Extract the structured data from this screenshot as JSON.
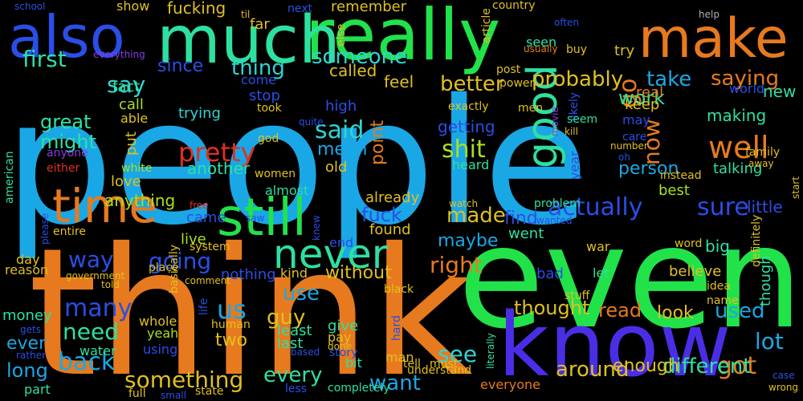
{
  "colors": {
    "background": "#000000",
    "sky": "#1aa7e6",
    "green": "#22e24a",
    "orange": "#e77a1e",
    "violet": "#4a2ee6",
    "mint": "#2ee0a0",
    "cyan": "#2fd4d4",
    "blue": "#2a4ee6",
    "lime": "#a8e020",
    "red": "#e03020",
    "gold": "#e0c020",
    "purple": "#8a3ae6",
    "gray": "#b0b0b0"
  },
  "words": [
    {
      "text": "people",
      "color": "sky"
    },
    {
      "text": "think",
      "color": "orange"
    },
    {
      "text": "even",
      "color": "green"
    },
    {
      "text": "know",
      "color": "violet"
    },
    {
      "text": "really",
      "color": "green"
    },
    {
      "text": "much",
      "color": "mint"
    },
    {
      "text": "also",
      "color": "blue"
    },
    {
      "text": "make",
      "color": "orange"
    },
    {
      "text": "time",
      "color": "orange"
    },
    {
      "text": "still",
      "color": "green"
    },
    {
      "text": "never",
      "color": "mint"
    },
    {
      "text": "good",
      "color": "mint"
    },
    {
      "text": "go",
      "color": "orange"
    },
    {
      "text": "now",
      "color": "orange"
    },
    {
      "text": "pretty",
      "color": "red"
    },
    {
      "text": "well",
      "color": "orange"
    },
    {
      "text": "actually",
      "color": "blue"
    },
    {
      "text": "sure",
      "color": "blue"
    },
    {
      "text": "shit",
      "color": "lime"
    },
    {
      "text": "made",
      "color": "gold"
    },
    {
      "text": "said",
      "color": "cyan"
    },
    {
      "text": "first",
      "color": "mint"
    },
    {
      "text": "say",
      "color": "cyan"
    },
    {
      "text": "thing",
      "color": "cyan"
    },
    {
      "text": "someone",
      "color": "cyan"
    },
    {
      "text": "better",
      "color": "gold"
    },
    {
      "text": "probably",
      "color": "gold"
    },
    {
      "text": "take",
      "color": "sky"
    },
    {
      "text": "saying",
      "color": "orange"
    },
    {
      "text": "fucking",
      "color": "gold"
    },
    {
      "text": "going",
      "color": "blue"
    },
    {
      "text": "many",
      "color": "blue"
    },
    {
      "text": "way",
      "color": "blue"
    },
    {
      "text": "need",
      "color": "mint"
    },
    {
      "text": "back",
      "color": "sky"
    },
    {
      "text": "something",
      "color": "gold"
    },
    {
      "text": "every",
      "color": "mint"
    },
    {
      "text": "see",
      "color": "cyan"
    },
    {
      "text": "want",
      "color": "sky"
    },
    {
      "text": "got",
      "color": "orange"
    },
    {
      "text": "lot",
      "color": "sky"
    },
    {
      "text": "read",
      "color": "orange"
    },
    {
      "text": "used",
      "color": "sky"
    },
    {
      "text": "thought",
      "color": "gold"
    },
    {
      "text": "around",
      "color": "gold"
    },
    {
      "text": "different",
      "color": "mint"
    },
    {
      "text": "right",
      "color": "orange"
    },
    {
      "text": "fuck",
      "color": "blue"
    },
    {
      "text": "us",
      "color": "sky"
    },
    {
      "text": "use",
      "color": "sky"
    },
    {
      "text": "guy",
      "color": "gold"
    },
    {
      "text": "great",
      "color": "mint"
    },
    {
      "text": "might",
      "color": "mint"
    },
    {
      "text": "mean",
      "color": "sky"
    },
    {
      "text": "work",
      "color": "mint"
    },
    {
      "text": "person",
      "color": "sky"
    },
    {
      "text": "maybe",
      "color": "sky"
    },
    {
      "text": "find",
      "color": "blue"
    },
    {
      "text": "point",
      "color": "orange"
    },
    {
      "text": "since",
      "color": "blue"
    },
    {
      "text": "another",
      "color": "mint"
    },
    {
      "text": "look",
      "color": "gold"
    },
    {
      "text": "ever",
      "color": "sky"
    },
    {
      "text": "long",
      "color": "sky"
    },
    {
      "text": "two",
      "color": "gold"
    },
    {
      "text": "without",
      "color": "gold"
    },
    {
      "text": "enough",
      "color": "gold"
    },
    {
      "text": "little",
      "color": "blue"
    },
    {
      "text": "new",
      "color": "mint"
    },
    {
      "text": "real",
      "color": "orange"
    },
    {
      "text": "keep",
      "color": "gold"
    },
    {
      "text": "making",
      "color": "mint"
    },
    {
      "text": "talking",
      "color": "mint"
    },
    {
      "text": "best",
      "color": "lime"
    },
    {
      "text": "big",
      "color": "mint"
    },
    {
      "text": "believe",
      "color": "gold"
    },
    {
      "text": "anything",
      "color": "lime"
    },
    {
      "text": "love",
      "color": "gold"
    },
    {
      "text": "live",
      "color": "lime"
    },
    {
      "text": "came",
      "color": "blue"
    },
    {
      "text": "feel",
      "color": "gold"
    },
    {
      "text": "called",
      "color": "gold"
    },
    {
      "text": "getting",
      "color": "blue"
    },
    {
      "text": "old",
      "color": "gold"
    },
    {
      "text": "trying",
      "color": "cyan"
    },
    {
      "text": "stop",
      "color": "blue"
    },
    {
      "text": "come",
      "color": "blue"
    },
    {
      "text": "high",
      "color": "blue"
    },
    {
      "text": "fact",
      "color": "mint"
    },
    {
      "text": "call",
      "color": "lime"
    },
    {
      "text": "able",
      "color": "gold"
    },
    {
      "text": "put",
      "color": "gold"
    },
    {
      "text": "nothing",
      "color": "blue"
    },
    {
      "text": "kind",
      "color": "gold"
    },
    {
      "text": "least",
      "color": "mint"
    },
    {
      "text": "last",
      "color": "mint"
    },
    {
      "text": "give",
      "color": "mint"
    },
    {
      "text": "pay",
      "color": "gold"
    },
    {
      "text": "bit",
      "color": "mint"
    },
    {
      "text": "bad",
      "color": "blue"
    },
    {
      "text": "let",
      "color": "mint"
    },
    {
      "text": "end",
      "color": "blue"
    },
    {
      "text": "found",
      "color": "gold"
    },
    {
      "text": "already",
      "color": "gold"
    },
    {
      "text": "war",
      "color": "gold"
    },
    {
      "text": "went",
      "color": "mint"
    },
    {
      "text": "may",
      "color": "blue"
    },
    {
      "text": "year",
      "color": "blue"
    },
    {
      "text": "world",
      "color": "blue"
    },
    {
      "text": "try",
      "color": "gold"
    },
    {
      "text": "remember",
      "color": "gold"
    },
    {
      "text": "far",
      "color": "gold"
    },
    {
      "text": "show",
      "color": "gold"
    },
    {
      "text": "next",
      "color": "blue"
    },
    {
      "text": "til",
      "color": "gold"
    },
    {
      "text": "seen",
      "color": "mint"
    },
    {
      "text": "post",
      "color": "gold"
    },
    {
      "text": "power",
      "color": "gold"
    },
    {
      "text": "likely",
      "color": "blue"
    },
    {
      "text": "buy",
      "color": "gold"
    },
    {
      "text": "help",
      "color": "gray"
    },
    {
      "text": "country",
      "color": "gold"
    },
    {
      "text": "often",
      "color": "blue"
    },
    {
      "text": "article",
      "color": "gold"
    },
    {
      "text": "usually",
      "color": "orange"
    },
    {
      "text": "else",
      "color": "gold"
    },
    {
      "text": "school",
      "color": "blue"
    },
    {
      "text": "everything",
      "color": "purple"
    },
    {
      "text": "took",
      "color": "gold"
    },
    {
      "text": "exactly",
      "color": "gold"
    },
    {
      "text": "men",
      "color": "gold"
    },
    {
      "text": "movie",
      "color": "purple"
    },
    {
      "text": "seem",
      "color": "mint"
    },
    {
      "text": "kill",
      "color": "gold"
    },
    {
      "text": "care",
      "color": "blue"
    },
    {
      "text": "number",
      "color": "gold"
    },
    {
      "text": "oh",
      "color": "blue"
    },
    {
      "text": "instead",
      "color": "gold"
    },
    {
      "text": "family",
      "color": "gold"
    },
    {
      "text": "away",
      "color": "gold"
    },
    {
      "text": "start",
      "color": "gold"
    },
    {
      "text": "god",
      "color": "gold"
    },
    {
      "text": "quite",
      "color": "blue"
    },
    {
      "text": "heard",
      "color": "mint"
    },
    {
      "text": "women",
      "color": "gold"
    },
    {
      "text": "anyone",
      "color": "purple"
    },
    {
      "text": "white",
      "color": "lime"
    },
    {
      "text": "either",
      "color": "red"
    },
    {
      "text": "american",
      "color": "mint"
    },
    {
      "text": "almost",
      "color": "mint"
    },
    {
      "text": "saw",
      "color": "blue"
    },
    {
      "text": "knew",
      "color": "blue"
    },
    {
      "text": "free",
      "color": "red"
    },
    {
      "text": "system",
      "color": "gold"
    },
    {
      "text": "basically",
      "color": "gold"
    },
    {
      "text": "place",
      "color": "gold"
    },
    {
      "text": "wanted",
      "color": "blue"
    },
    {
      "text": "watch",
      "color": "gold"
    },
    {
      "text": "problem",
      "color": "mint"
    },
    {
      "text": "word",
      "color": "gold"
    },
    {
      "text": "definitely",
      "color": "gold"
    },
    {
      "text": "entire",
      "color": "gold"
    },
    {
      "text": "please",
      "color": "blue"
    },
    {
      "text": "day",
      "color": "gold"
    },
    {
      "text": "reason",
      "color": "gold"
    },
    {
      "text": "government",
      "color": "gold"
    },
    {
      "text": "told",
      "color": "gold"
    },
    {
      "text": "comment",
      "color": "gold"
    },
    {
      "text": "black",
      "color": "gold"
    },
    {
      "text": "stuff",
      "color": "gold"
    },
    {
      "text": "idea",
      "color": "gold"
    },
    {
      "text": "name",
      "color": "gold"
    },
    {
      "text": "though",
      "color": "mint"
    },
    {
      "text": "money",
      "color": "mint"
    },
    {
      "text": "life",
      "color": "blue"
    },
    {
      "text": "human",
      "color": "gold"
    },
    {
      "text": "whole",
      "color": "gold"
    },
    {
      "text": "yeah",
      "color": "lime"
    },
    {
      "text": "using",
      "color": "blue"
    },
    {
      "text": "water",
      "color": "mint"
    },
    {
      "text": "gets",
      "color": "blue"
    },
    {
      "text": "rather",
      "color": "blue"
    },
    {
      "text": "part",
      "color": "mint"
    },
    {
      "text": "full",
      "color": "gold"
    },
    {
      "text": "small",
      "color": "blue"
    },
    {
      "text": "state",
      "color": "gold"
    },
    {
      "text": "based",
      "color": "blue"
    },
    {
      "text": "done",
      "color": "gold"
    },
    {
      "text": "story",
      "color": "blue"
    },
    {
      "text": "literally",
      "color": "mint"
    },
    {
      "text": "must",
      "color": "gold"
    },
    {
      "text": "tell",
      "color": "gold"
    },
    {
      "text": "less",
      "color": "blue"
    },
    {
      "text": "completely",
      "color": "mint"
    },
    {
      "text": "understand",
      "color": "gold"
    },
    {
      "text": "everyone",
      "color": "orange"
    },
    {
      "text": "man",
      "color": "gold"
    },
    {
      "text": "hard",
      "color": "blue"
    },
    {
      "text": "case",
      "color": "blue"
    },
    {
      "text": "wrong",
      "color": "gold"
    }
  ]
}
